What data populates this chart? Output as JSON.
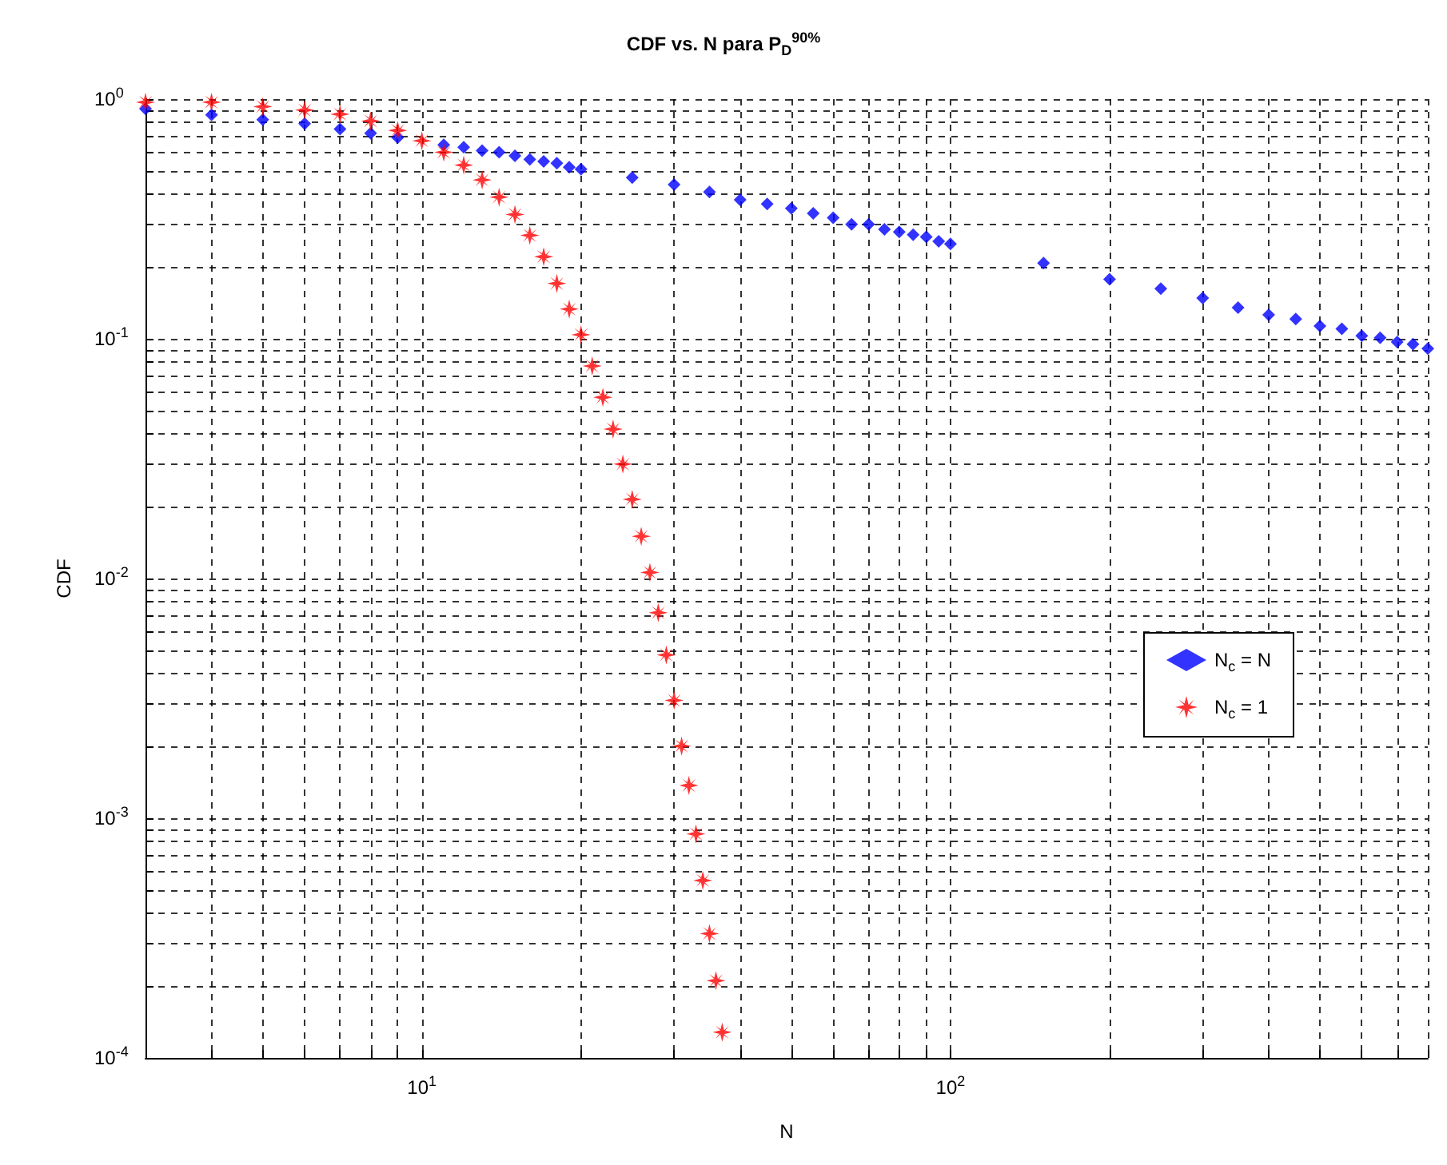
{
  "chart_data": {
    "type": "scatter",
    "title": "CDF vs. N para P$_{D}$$^{90%}$",
    "xlabel": "N",
    "ylabel": "CDF",
    "log": "xy",
    "grid": true,
    "legend": "right",
    "xlim": [
      3,
      800
    ],
    "xticks": [
      {
        "value": 10,
        "label": "10$^{1}$"
      },
      {
        "value": 100,
        "label": "10$^{2}$"
      }
    ],
    "ylim": [
      0.0001,
      1
    ],
    "yticks": [
      {
        "value": 0.0001,
        "label": "10$^{-4}$"
      },
      {
        "value": 0.001,
        "label": "10$^{-3}$"
      },
      {
        "value": 0.01,
        "label": "10$^{-2}$"
      },
      {
        "value": 0.1,
        "label": "10$^{-1}$"
      },
      {
        "value": 1,
        "label": "10$^{0}$"
      }
    ],
    "series": [
      {
        "name": "N$_{c}$ = N",
        "color": "#0000ff",
        "marker": "diamond",
        "x": [
          3,
          4,
          5,
          6,
          7,
          8,
          9,
          10,
          11,
          12,
          13,
          14,
          15,
          16,
          17,
          18,
          19,
          20,
          25,
          30,
          35,
          40,
          45,
          50,
          55,
          60,
          65,
          70,
          75,
          80,
          85,
          90,
          95,
          100,
          150,
          200,
          250,
          300,
          350,
          400,
          450,
          500,
          550,
          600,
          650,
          700,
          750,
          800
        ],
        "values": [
          0.91,
          0.86,
          0.82,
          0.79,
          0.75,
          0.72,
          0.69,
          null,
          0.645,
          0.63,
          0.61,
          0.6,
          0.58,
          0.56,
          0.55,
          0.54,
          0.52,
          0.51,
          0.47,
          0.44,
          0.41,
          0.38,
          0.365,
          0.35,
          0.334,
          0.32,
          0.3,
          0.3,
          0.286,
          0.279,
          0.272,
          0.266,
          0.255,
          0.249,
          0.207,
          0.177,
          0.162,
          0.148,
          0.135,
          0.126,
          0.121,
          0.113,
          0.11,
          0.103,
          0.101,
          0.097,
          0.095,
          0.091
        ]
      },
      {
        "name": "N$_{c}$ = 1",
        "color": "#ff0000",
        "marker": "star",
        "x": [
          3,
          4,
          5,
          6,
          7,
          8,
          9,
          10,
          11,
          12,
          13,
          14,
          15,
          16,
          17,
          18,
          19,
          20,
          21,
          22,
          23,
          24,
          25,
          26,
          27,
          28,
          29,
          30,
          31,
          32,
          33,
          34,
          35,
          36,
          37
        ],
        "values": [
          0.97,
          0.97,
          0.93,
          0.9,
          0.865,
          0.81,
          0.74,
          0.67,
          0.6,
          0.53,
          0.46,
          0.39,
          0.33,
          0.27,
          0.22,
          0.17,
          0.133,
          0.104,
          0.077,
          0.057,
          0.042,
          0.03,
          0.0214,
          0.015,
          0.0106,
          0.0072,
          0.0048,
          0.0031,
          0.002,
          0.00137,
          0.00086,
          0.00055,
          0.00033,
          0.00021,
          0.000128
        ]
      }
    ]
  }
}
